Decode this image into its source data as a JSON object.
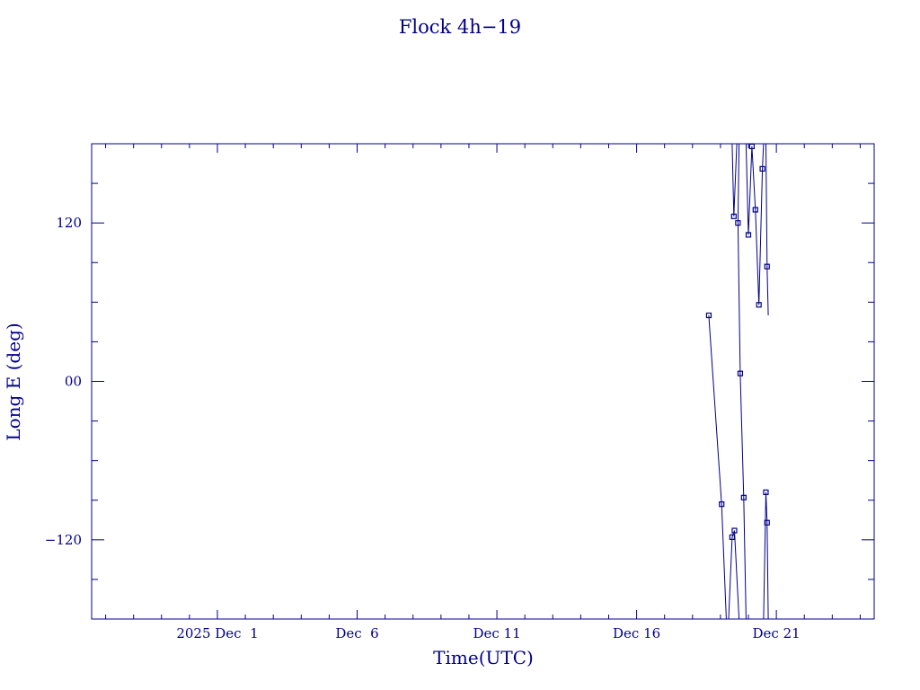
{
  "chart_data": {
    "type": "line",
    "title": "Flock 4h−19",
    "xlabel": "Time(UTC)",
    "ylabel": "Long E (deg)",
    "x_unit": "date (UTC, 2025)",
    "xlim": [
      "2025-11-26T12:00",
      "2025-12-24T12:00"
    ],
    "ylim": [
      -180,
      180
    ],
    "grid": false,
    "color": "#00008B",
    "x_ticks": [
      {
        "date": "2025-12-01",
        "label": "2025 Dec  1"
      },
      {
        "date": "2025-12-06",
        "label": "Dec  6"
      },
      {
        "date": "2025-12-11",
        "label": "Dec 11"
      },
      {
        "date": "2025-12-16",
        "label": "Dec 16"
      },
      {
        "date": "2025-12-21",
        "label": "Dec 21"
      }
    ],
    "y_ticks": [
      {
        "value": 120,
        "label": "120"
      },
      {
        "value": 0,
        "label": "00"
      },
      {
        "value": -120,
        "label": "−120"
      }
    ],
    "segments": [
      [
        [
          "2025-12-18T14:00",
          50
        ],
        [
          "2025-12-19T01:00",
          -93
        ],
        [
          "2025-12-19T05:00",
          -180
        ]
      ],
      [
        [
          "2025-12-19T07:00",
          -180
        ],
        [
          "2025-12-19T10:00",
          -118
        ],
        [
          "2025-12-19T12:00",
          -113
        ],
        [
          "2025-12-19T16:00",
          -180
        ]
      ],
      [
        [
          "2025-12-19T10:00",
          180
        ],
        [
          "2025-12-19T11:30",
          125
        ],
        [
          "2025-12-19T14:00",
          180
        ]
      ],
      [
        [
          "2025-12-19T16:00",
          180
        ],
        [
          "2025-12-19T15:00",
          120
        ],
        [
          "2025-12-19T17:00",
          6
        ],
        [
          "2025-12-19T20:00",
          -88
        ],
        [
          "2025-12-19T22:00",
          -180
        ]
      ],
      [
        [
          "2025-12-19T22:00",
          180
        ],
        [
          "2025-12-20T00:00",
          111
        ],
        [
          "2025-12-20T03:00",
          178
        ],
        [
          "2025-12-20T06:00",
          130
        ],
        [
          "2025-12-20T09:00",
          58
        ],
        [
          "2025-12-20T12:00",
          161
        ],
        [
          "2025-12-20T13:00",
          180
        ]
      ],
      [
        [
          "2025-12-20T13:00",
          -180
        ],
        [
          "2025-12-20T15:00",
          -84
        ],
        [
          "2025-12-20T16:00",
          -107
        ],
        [
          "2025-12-20T17:00",
          -180
        ]
      ],
      [
        [
          "2025-12-20T17:00",
          50
        ],
        [
          "2025-12-20T16:00",
          87
        ],
        [
          "2025-12-20T15:00",
          180
        ]
      ]
    ],
    "points": [
      [
        "2025-12-18T14:00",
        50
      ],
      [
        "2025-12-19T01:00",
        -93
      ],
      [
        "2025-12-19T10:00",
        -118
      ],
      [
        "2025-12-19T12:00",
        -113
      ],
      [
        "2025-12-19T11:30",
        125
      ],
      [
        "2025-12-19T15:00",
        120
      ],
      [
        "2025-12-19T17:00",
        6
      ],
      [
        "2025-12-19T20:00",
        -88
      ],
      [
        "2025-12-20T00:00",
        111
      ],
      [
        "2025-12-20T03:00",
        178
      ],
      [
        "2025-12-20T06:00",
        130
      ],
      [
        "2025-12-20T09:00",
        58
      ],
      [
        "2025-12-20T12:00",
        161
      ],
      [
        "2025-12-20T15:00",
        -84
      ],
      [
        "2025-12-20T16:00",
        -107
      ],
      [
        "2025-12-20T16:00",
        87
      ]
    ]
  }
}
